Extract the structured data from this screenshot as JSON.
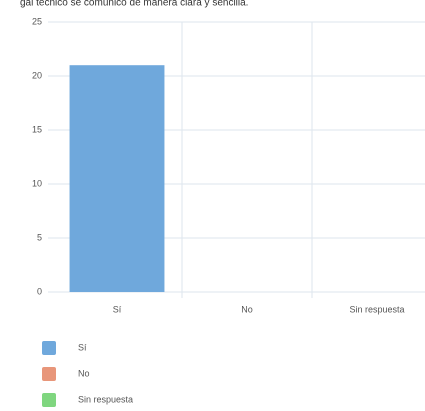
{
  "chart_data": {
    "type": "bar",
    "title": "gal técnico se comunicó de manera clara y sencilla.",
    "categories": [
      "Sí",
      "No",
      "Sin respuesta"
    ],
    "values": [
      21,
      0,
      0
    ],
    "colors": [
      "#6fa8dc",
      "#e8967a",
      "#7fd67f"
    ],
    "ylim": [
      0,
      25
    ],
    "yticks": [
      0,
      5,
      10,
      15,
      20,
      25
    ],
    "grid": true
  }
}
